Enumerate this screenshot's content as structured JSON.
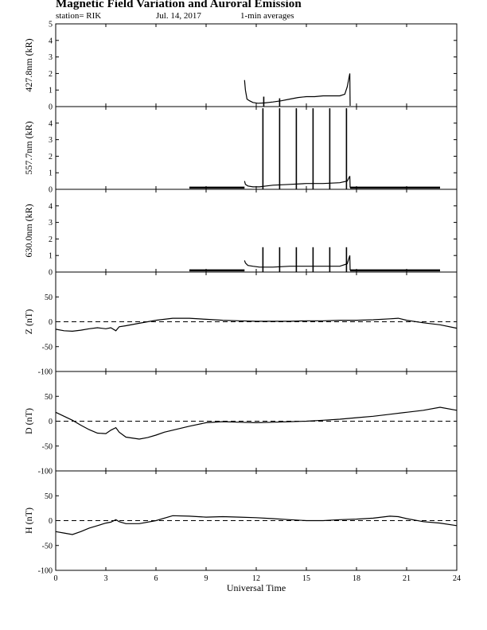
{
  "header": {
    "title": "Magnetic Field Variation and Auroral Emission",
    "station": "station= RIK",
    "date": "Jul. 14, 2017",
    "averaging": "1-min averages"
  },
  "chart_data": [
    {
      "type": "line",
      "ylabel": "427.8nm (kR)",
      "ylim": [
        0,
        5
      ],
      "yticks": [
        0,
        1,
        2,
        3,
        4,
        5
      ],
      "x": [
        11.3,
        11.35,
        11.45,
        11.6,
        11.8,
        12.1,
        12.5,
        13.0,
        13.5,
        14.0,
        14.5,
        15.0,
        15.5,
        16.0,
        16.5,
        17.0,
        17.3,
        17.45,
        17.6,
        17.62
      ],
      "y": [
        1.6,
        1.0,
        0.45,
        0.35,
        0.25,
        0.2,
        0.22,
        0.28,
        0.35,
        0.45,
        0.55,
        0.6,
        0.6,
        0.65,
        0.65,
        0.65,
        0.75,
        1.2,
        2.0,
        0.05
      ],
      "spikes": [
        {
          "x": 12.45,
          "y": 0.6
        },
        {
          "x": 13.4,
          "y": 0.5
        }
      ],
      "baseline": null
    },
    {
      "type": "line",
      "ylabel": "557.7nm (kR)",
      "ylim": [
        0,
        5
      ],
      "yticks": [
        0,
        1,
        2,
        3,
        4
      ],
      "x": [
        11.3,
        11.35,
        11.5,
        11.8,
        12.2,
        12.6,
        13.0,
        14.0,
        15.0,
        16.0,
        17.0,
        17.45,
        17.6,
        17.62
      ],
      "y": [
        0.5,
        0.3,
        0.2,
        0.15,
        0.15,
        0.2,
        0.25,
        0.3,
        0.35,
        0.35,
        0.4,
        0.5,
        0.8,
        0.1
      ],
      "spikes": [
        {
          "x": 12.4,
          "y": 4.9
        },
        {
          "x": 13.4,
          "y": 4.9
        },
        {
          "x": 14.4,
          "y": 4.9
        },
        {
          "x": 15.4,
          "y": 4.9
        },
        {
          "x": 16.4,
          "y": 4.9
        },
        {
          "x": 17.4,
          "y": 4.9
        }
      ],
      "baseline": {
        "segments": [
          [
            8.0,
            11.3,
            0.1
          ],
          [
            17.62,
            23.0,
            0.1
          ]
        ]
      }
    },
    {
      "type": "line",
      "ylabel": "630.0nm (kR)",
      "ylim": [
        0,
        5
      ],
      "yticks": [
        0,
        1,
        2,
        3,
        4
      ],
      "x": [
        11.3,
        11.35,
        11.5,
        11.8,
        12.2,
        12.6,
        13.0,
        14.0,
        15.0,
        16.0,
        17.0,
        17.45,
        17.6,
        17.62
      ],
      "y": [
        0.7,
        0.55,
        0.4,
        0.35,
        0.3,
        0.3,
        0.3,
        0.35,
        0.35,
        0.35,
        0.35,
        0.5,
        1.0,
        0.1
      ],
      "spikes": [
        {
          "x": 12.4,
          "y": 1.5
        },
        {
          "x": 13.4,
          "y": 1.5
        },
        {
          "x": 14.4,
          "y": 1.5
        },
        {
          "x": 15.4,
          "y": 1.5
        },
        {
          "x": 16.4,
          "y": 1.5
        },
        {
          "x": 17.4,
          "y": 1.5
        }
      ],
      "baseline": {
        "segments": [
          [
            8.0,
            11.3,
            0.1
          ],
          [
            17.62,
            23.0,
            0.1
          ]
        ]
      }
    },
    {
      "type": "line",
      "ylabel": "Z (nT)",
      "ylim": [
        -100,
        100
      ],
      "yticks": [
        -100,
        -50,
        0,
        50
      ],
      "zero_line": "dashed",
      "x": [
        0,
        0.5,
        1.0,
        1.5,
        2.0,
        2.5,
        3.0,
        3.3,
        3.6,
        3.8,
        4.2,
        5.0,
        6.0,
        7.0,
        8.0,
        9.0,
        10.0,
        11.0,
        12.0,
        13.0,
        14.0,
        15.0,
        16.0,
        17.0,
        18.0,
        19.0,
        20.0,
        20.5,
        21.0,
        22.0,
        23.0,
        24.0
      ],
      "y": [
        -15,
        -18,
        -19,
        -17,
        -14,
        -12,
        -14,
        -12,
        -18,
        -10,
        -8,
        -3,
        3,
        7,
        7,
        5,
        3,
        2,
        1,
        1,
        1,
        2,
        2,
        3,
        3,
        4,
        6,
        7,
        3,
        -2,
        -6,
        -13
      ]
    },
    {
      "type": "line",
      "ylabel": "D (nT)",
      "ylim": [
        -100,
        100
      ],
      "yticks": [
        -100,
        -50,
        0,
        50
      ],
      "zero_line": "dashed",
      "x": [
        0,
        0.5,
        1.0,
        1.5,
        2.0,
        2.5,
        3.0,
        3.3,
        3.6,
        3.8,
        4.2,
        5.0,
        5.5,
        6.0,
        6.5,
        7.0,
        8.0,
        9.0,
        10.0,
        11.0,
        12.0,
        13.0,
        14.0,
        15.0,
        16.0,
        17.0,
        18.0,
        19.0,
        20.0,
        21.0,
        22.0,
        23.0,
        24.0
      ],
      "y": [
        18,
        10,
        2,
        -8,
        -17,
        -24,
        -25,
        -18,
        -13,
        -22,
        -32,
        -36,
        -33,
        -28,
        -22,
        -18,
        -10,
        -3,
        -1,
        -2,
        -3,
        -2,
        -1,
        0,
        2,
        4,
        7,
        10,
        14,
        18,
        22,
        28,
        22
      ]
    },
    {
      "type": "line",
      "ylabel": "H (nT)",
      "ylim": [
        -100,
        100
      ],
      "yticks": [
        -100,
        -50,
        0,
        50
      ],
      "zero_line": "dashed",
      "x": [
        0,
        0.5,
        1.0,
        1.5,
        2.0,
        2.5,
        3.0,
        3.3,
        3.6,
        3.8,
        4.2,
        5.0,
        6.0,
        7.0,
        8.0,
        9.0,
        10.0,
        11.0,
        12.0,
        13.0,
        14.0,
        15.0,
        16.0,
        17.0,
        18.0,
        19.0,
        20.0,
        20.5,
        21.0,
        22.0,
        23.0,
        24.0
      ],
      "y": [
        -22,
        -25,
        -28,
        -22,
        -15,
        -10,
        -5,
        -3,
        2,
        -2,
        -6,
        -6,
        0,
        10,
        9,
        7,
        8,
        7,
        6,
        4,
        2,
        0,
        0,
        2,
        3,
        5,
        9,
        8,
        4,
        -2,
        -5,
        -10
      ]
    }
  ],
  "x_axis": {
    "label": "Universal Time",
    "xlim": [
      0,
      24
    ],
    "ticks": [
      0,
      3,
      6,
      9,
      12,
      15,
      18,
      21,
      24
    ],
    "tick_labels": [
      "0",
      "3",
      "6",
      "9",
      "12",
      "15",
      "18",
      "21",
      "24"
    ]
  }
}
